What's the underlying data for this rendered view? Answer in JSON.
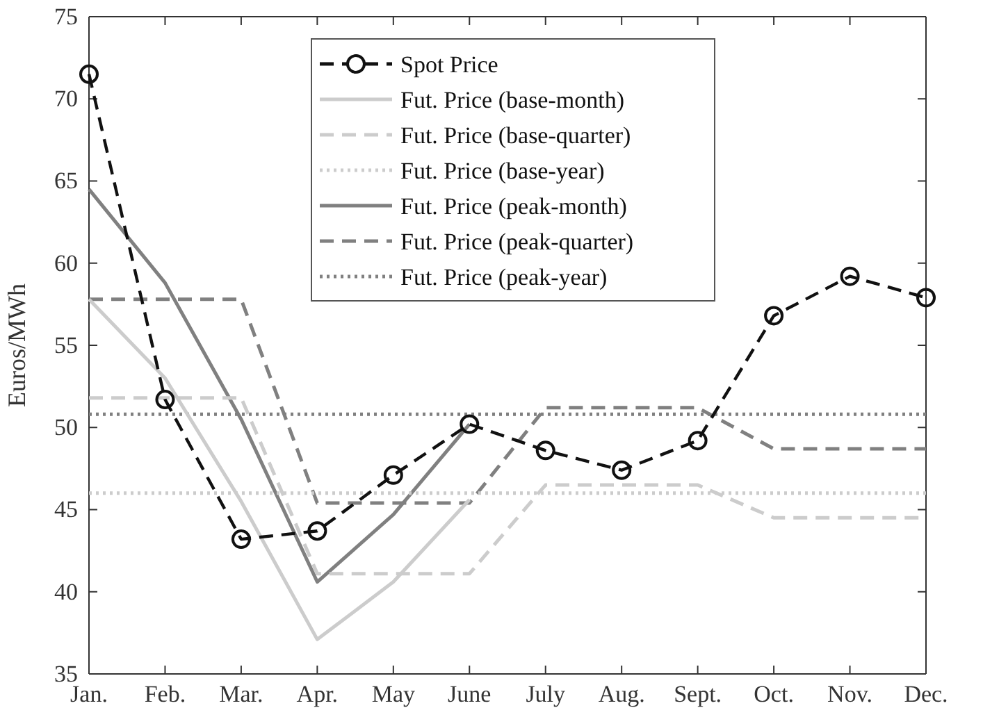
{
  "chart_data": {
    "type": "line",
    "ylabel": "Euros/MWh",
    "categories": [
      "Jan.",
      "Feb.",
      "Mar.",
      "Apr.",
      "May",
      "June",
      "July",
      "Aug.",
      "Sept.",
      "Oct.",
      "Nov.",
      "Dec."
    ],
    "ylim": [
      35,
      75
    ],
    "yticks": [
      35,
      40,
      45,
      50,
      55,
      60,
      65,
      70,
      75
    ],
    "grid": false,
    "legend": "top",
    "series": [
      {
        "name": "Spot Price",
        "color": "#111111",
        "line_style": "dashed",
        "marker": "circle",
        "values": [
          71.5,
          51.7,
          43.2,
          43.7,
          47.1,
          50.2,
          48.6,
          47.4,
          49.2,
          56.8,
          59.2,
          57.9
        ]
      },
      {
        "name": "Fut. Price (base-month)",
        "color": "#cccccc",
        "line_style": "solid",
        "marker": "none",
        "values": [
          57.8,
          53.0,
          45.5,
          37.1,
          40.6,
          45.6,
          null,
          null,
          null,
          null,
          null,
          null
        ]
      },
      {
        "name": "Fut. Price (base-quarter)",
        "color": "#cccccc",
        "line_style": "dashed",
        "marker": "none",
        "values": [
          51.8,
          51.8,
          51.8,
          41.1,
          41.1,
          41.1,
          46.5,
          46.5,
          46.5,
          44.5,
          44.5,
          44.5
        ]
      },
      {
        "name": "Fut. Price (base-year)",
        "color": "#cccccc",
        "line_style": "dotted",
        "marker": "none",
        "values": [
          46.0,
          46.0,
          46.0,
          46.0,
          46.0,
          46.0,
          46.0,
          46.0,
          46.0,
          46.0,
          46.0,
          46.0
        ]
      },
      {
        "name": "Fut. Price (peak-month)",
        "color": "#808080",
        "line_style": "solid",
        "marker": "none",
        "values": [
          64.5,
          58.8,
          50.5,
          40.6,
          44.7,
          50.2,
          null,
          null,
          null,
          null,
          null,
          null
        ]
      },
      {
        "name": "Fut. Price (peak-quarter)",
        "color": "#808080",
        "line_style": "dashed",
        "marker": "none",
        "values": [
          57.8,
          57.8,
          57.8,
          45.4,
          45.4,
          45.4,
          51.2,
          51.2,
          51.2,
          48.7,
          48.7,
          48.7
        ]
      },
      {
        "name": "Fut. Price (peak-year)",
        "color": "#808080",
        "line_style": "dotted",
        "marker": "none",
        "values": [
          50.8,
          50.8,
          50.8,
          50.8,
          50.8,
          50.8,
          50.8,
          50.8,
          50.8,
          50.8,
          50.8,
          50.8
        ]
      }
    ]
  }
}
